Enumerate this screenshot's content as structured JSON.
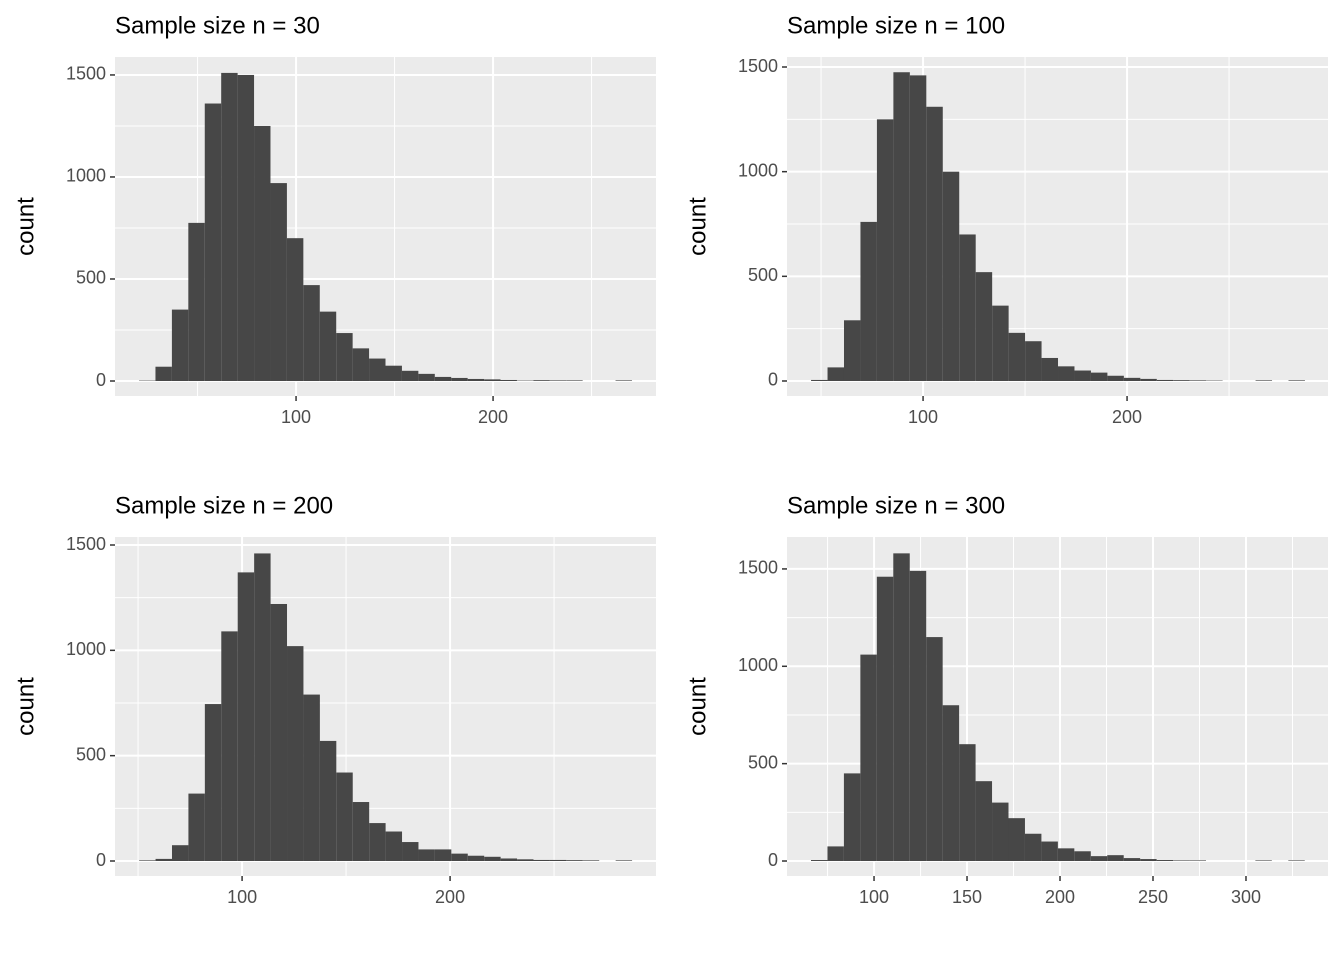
{
  "chart_data": [
    {
      "type": "histogram",
      "title": "Sample size n = 30",
      "ylabel": "count",
      "color": "#474747",
      "grid": true,
      "bins": [
        20.3,
        28.64,
        36.98,
        45.32,
        53.66,
        62,
        70.34,
        78.68,
        87.02,
        95.36,
        103.7,
        112.04,
        120.38,
        128.72,
        137.06,
        145.4,
        153.74,
        162.08,
        170.42,
        178.76,
        187.1,
        195.44,
        203.78,
        212.12,
        220.46,
        228.8,
        237.14,
        245.48,
        253.82,
        262.16,
        270.5
      ],
      "values": [
        2,
        70,
        350,
        775,
        1360,
        1510,
        1500,
        1250,
        970,
        700,
        470,
        340,
        235,
        160,
        110,
        75,
        50,
        35,
        20,
        15,
        10,
        8,
        5,
        2,
        4,
        3,
        3,
        0,
        0,
        3
      ],
      "xlim": [
        8.1,
        282.7
      ],
      "ylim": [
        -73.5,
        1588
      ],
      "xticks": [
        100,
        200
      ],
      "yticks": [
        0,
        500,
        1000,
        1500
      ],
      "xminor": [
        50,
        150,
        250
      ],
      "yminor": [
        250,
        750,
        1250
      ]
    },
    {
      "type": "histogram",
      "title": "Sample size n = 100",
      "ylabel": "count",
      "color": "#474747",
      "grid": true,
      "bins": [
        45.1,
        53.17,
        61.24,
        69.31,
        77.38,
        85.45,
        93.52,
        101.59,
        109.66,
        117.73,
        125.8,
        133.87,
        141.94,
        150.01,
        158.08,
        166.15,
        174.22,
        182.29,
        190.36,
        198.43,
        206.5,
        214.57,
        222.64,
        230.71,
        238.78,
        246.85,
        254.92,
        262.99,
        271.06,
        279.13,
        287.2
      ],
      "values": [
        5,
        65,
        290,
        760,
        1250,
        1475,
        1460,
        1310,
        1000,
        700,
        520,
        360,
        230,
        190,
        110,
        70,
        50,
        40,
        25,
        15,
        10,
        5,
        4,
        3,
        2,
        0,
        0,
        3,
        0,
        3
      ],
      "xlim": [
        33.3,
        298.5
      ],
      "ylim": [
        -71.7,
        1547.8
      ],
      "xticks": [
        100,
        200
      ],
      "yticks": [
        0,
        500,
        1000,
        1500
      ],
      "xminor": [
        50,
        150,
        250
      ],
      "yminor": [
        250,
        750,
        1250
      ]
    },
    {
      "type": "histogram",
      "title": "Sample size n = 200",
      "ylabel": "count",
      "color": "#474747",
      "grid": true,
      "bins": [
        50.5,
        58.4,
        66.3,
        74.2,
        82.1,
        90,
        97.9,
        105.8,
        113.7,
        121.6,
        129.5,
        137.4,
        145.3,
        153.2,
        161.1,
        169,
        176.9,
        184.8,
        192.7,
        200.6,
        208.5,
        216.4,
        224.3,
        232.2,
        240.1,
        248,
        255.9,
        263.8,
        271.7,
        279.6,
        287.5
      ],
      "values": [
        3,
        10,
        75,
        320,
        745,
        1090,
        1370,
        1460,
        1220,
        1020,
        790,
        570,
        420,
        280,
        180,
        140,
        90,
        55,
        55,
        35,
        25,
        20,
        12,
        8,
        5,
        5,
        4,
        3,
        0,
        3
      ],
      "xlim": [
        38.9,
        299
      ],
      "ylim": [
        -71.2,
        1538
      ],
      "xticks": [
        100,
        200
      ],
      "yticks": [
        0,
        500,
        1000,
        1500
      ],
      "xminor": [
        50,
        150,
        250
      ],
      "yminor": [
        250,
        750,
        1250
      ]
    },
    {
      "type": "histogram",
      "title": "Sample size n = 300",
      "ylabel": "count",
      "color": "#474747",
      "grid": true,
      "bins": [
        66.1,
        74.95,
        83.8,
        92.65,
        101.5,
        110.35,
        119.2,
        128.05,
        136.9,
        145.75,
        154.6,
        163.45,
        172.3,
        181.15,
        190,
        198.85,
        207.7,
        216.55,
        225.4,
        234.25,
        243.1,
        251.95,
        260.8,
        269.65,
        278.5,
        287.35,
        296.2,
        305.05,
        313.9,
        322.75,
        331.6
      ],
      "values": [
        5,
        75,
        450,
        1060,
        1460,
        1580,
        1490,
        1150,
        800,
        600,
        410,
        300,
        220,
        140,
        100,
        65,
        50,
        25,
        30,
        15,
        10,
        5,
        3,
        3,
        0,
        0,
        0,
        3,
        0,
        3
      ],
      "xlim": [
        53.2,
        344.1
      ],
      "ylim": [
        -77,
        1664
      ],
      "xticks": [
        100,
        150,
        200,
        250,
        300
      ],
      "yticks": [
        0,
        500,
        1000,
        1500
      ],
      "xminor": [
        75,
        125,
        175,
        225,
        275,
        325
      ],
      "yminor": [
        250,
        750,
        1250
      ]
    }
  ]
}
